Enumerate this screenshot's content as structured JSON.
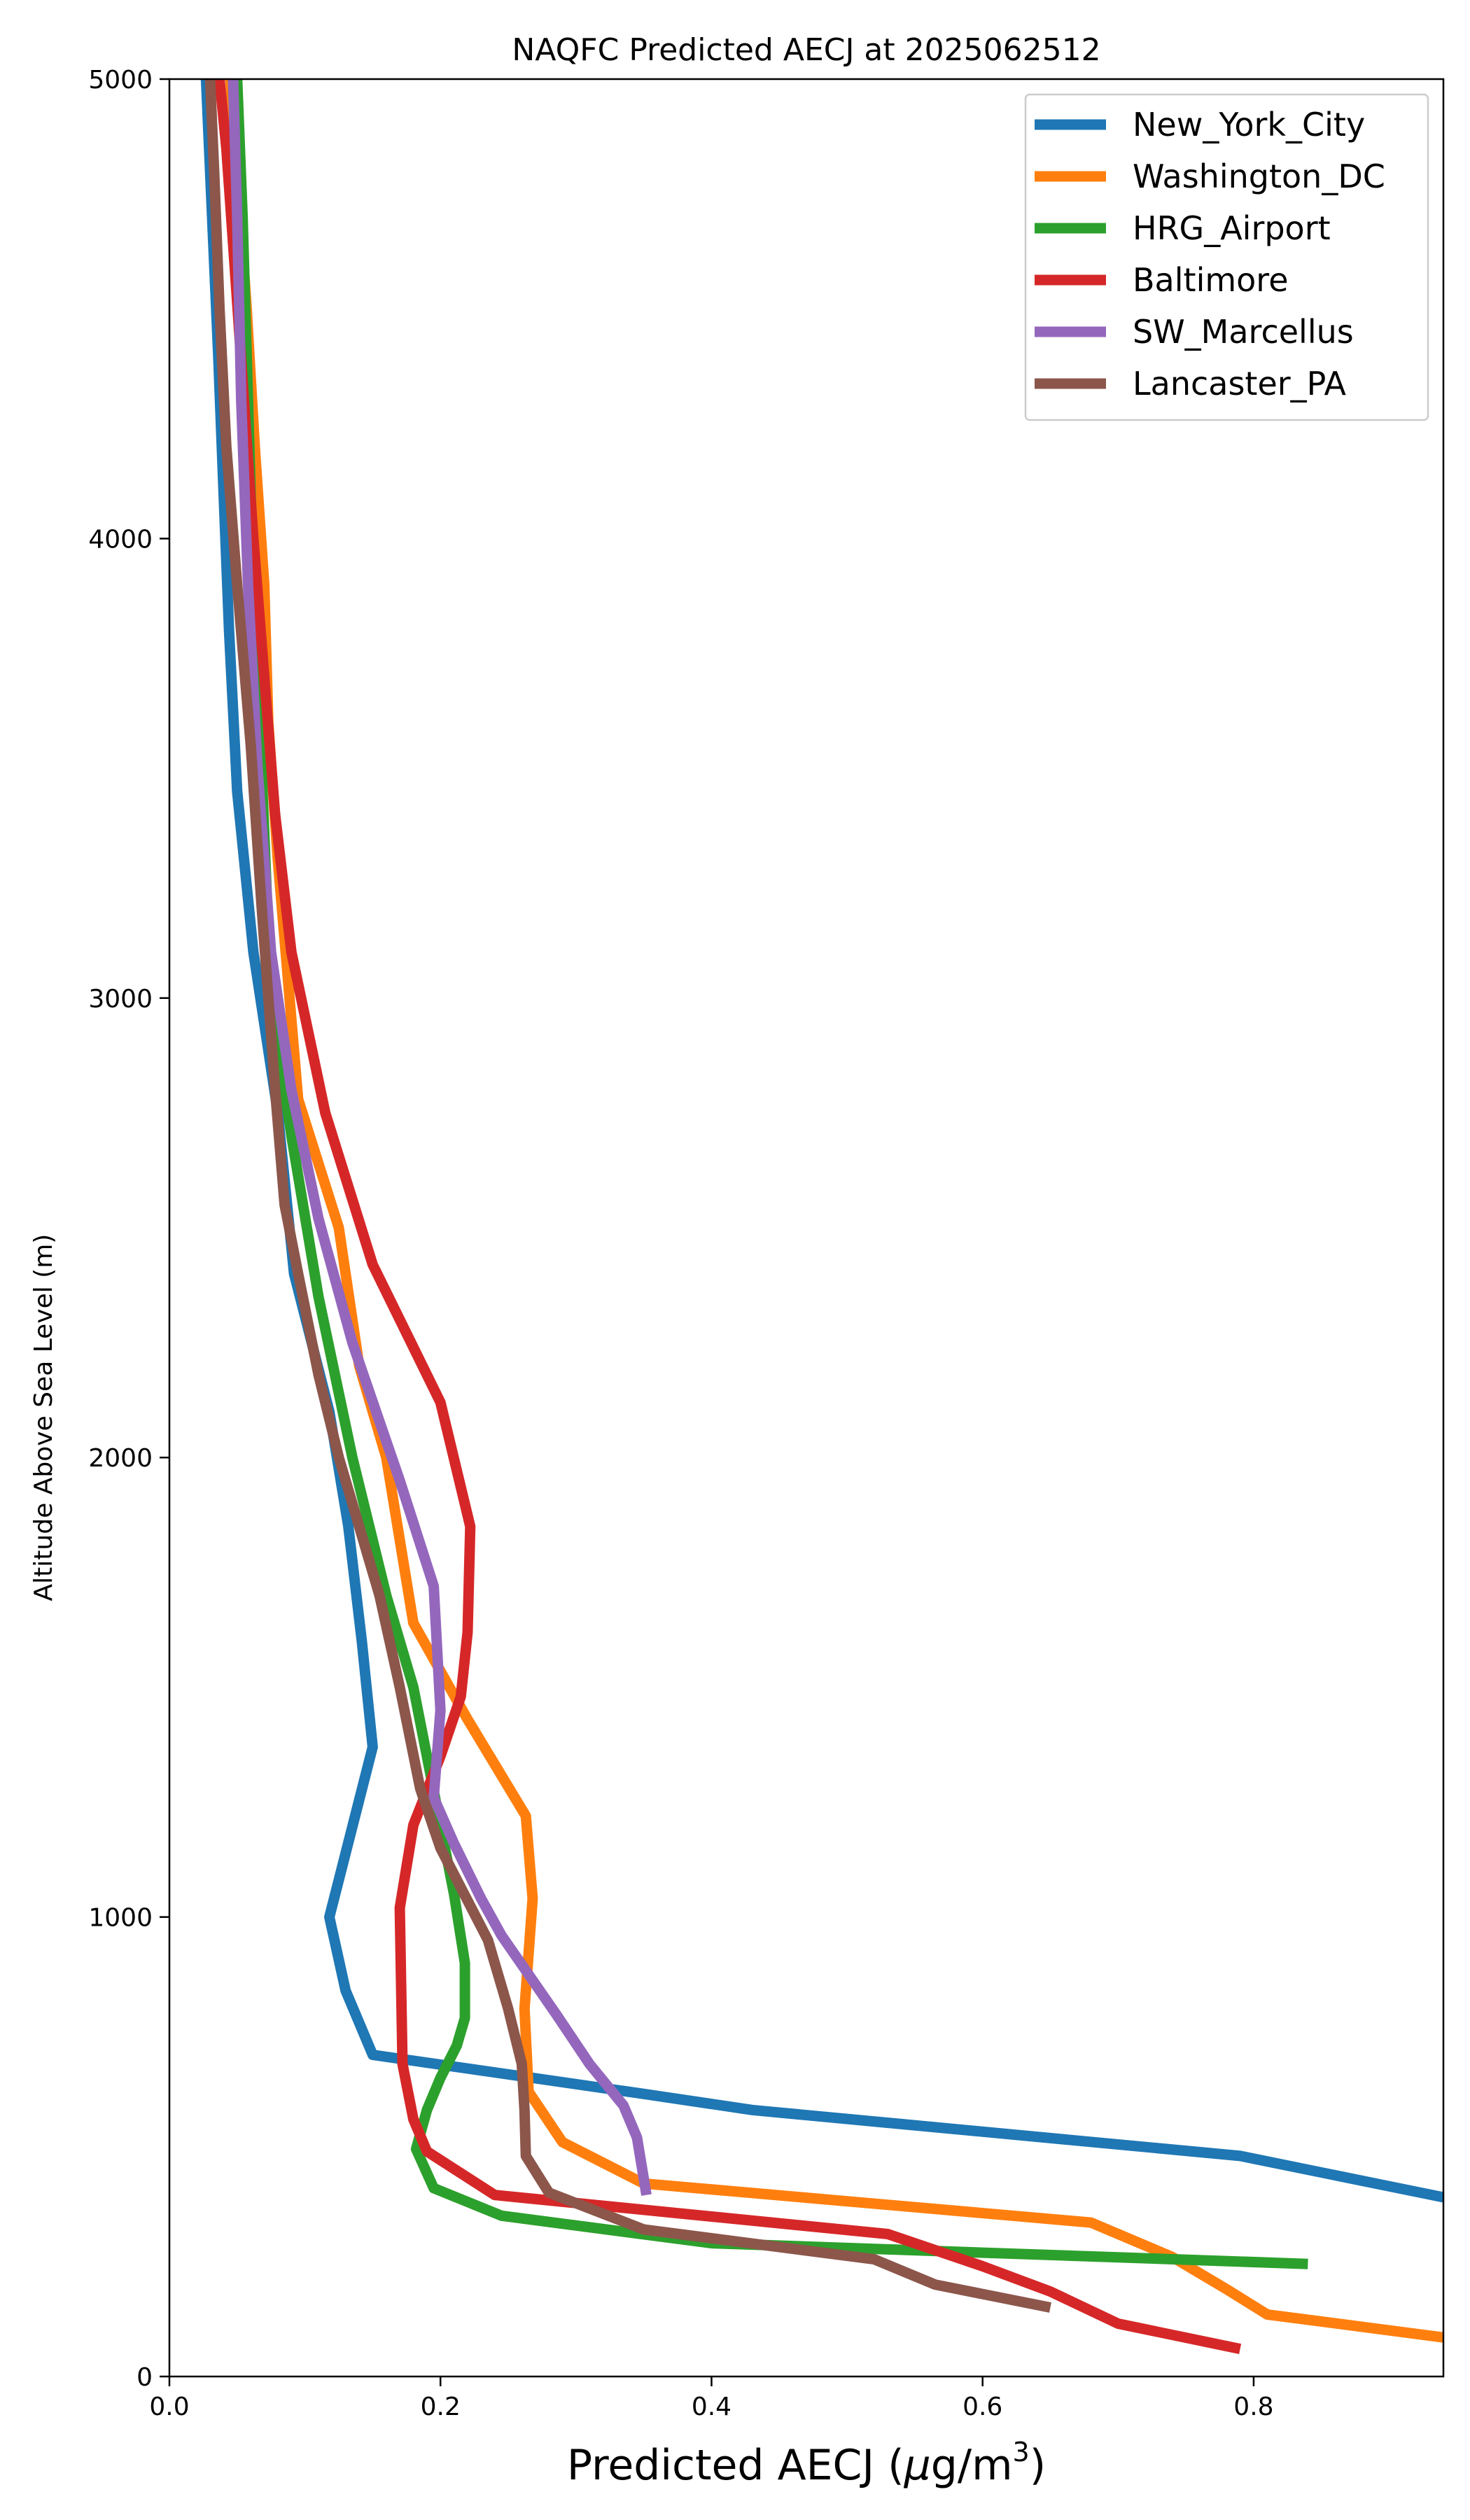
{
  "chart_data": {
    "type": "line",
    "title": "NAQFC Predicted AECJ at 2025062512",
    "xlabel": "Predicted AECJ (μg/m³)",
    "xlabel_parts": {
      "main": "Predicted AECJ (",
      "mu": "μ",
      "unit": "g/m",
      "sup": "3",
      "close": ")"
    },
    "ylabel": "Altitude Above Sea Level (m)",
    "xlim": [
      0,
      0.94
    ],
    "ylim": [
      0,
      5000
    ],
    "xticks": [
      0.0,
      0.2,
      0.4,
      0.6,
      0.8
    ],
    "xtick_labels": [
      "0.0",
      "0.2",
      "0.4",
      "0.6",
      "0.8"
    ],
    "yticks": [
      0,
      1000,
      2000,
      3000,
      4000,
      5000
    ],
    "ytick_labels": [
      "0",
      "1000",
      "2000",
      "3000",
      "4000",
      "5000"
    ],
    "grid": false,
    "legend_position": "top-right",
    "series": [
      {
        "name": "New_York_City",
        "color": "#1f77b4",
        "points": [
          [
            0.94,
            390
          ],
          [
            0.79,
            480
          ],
          [
            0.43,
            580
          ],
          [
            0.35,
            615
          ],
          [
            0.15,
            700
          ],
          [
            0.13,
            840
          ],
          [
            0.118,
            1000
          ],
          [
            0.15,
            1370
          ],
          [
            0.142,
            1600
          ],
          [
            0.132,
            1850
          ],
          [
            0.118,
            2100
          ],
          [
            0.092,
            2400
          ],
          [
            0.08,
            2750
          ],
          [
            0.062,
            3100
          ],
          [
            0.05,
            3450
          ],
          [
            0.044,
            3800
          ],
          [
            0.04,
            4100
          ],
          [
            0.036,
            4400
          ],
          [
            0.03,
            4800
          ],
          [
            0.027,
            5000
          ]
        ]
      },
      {
        "name": "Washington_DC",
        "color": "#ff7f0e",
        "points": [
          [
            0.94,
            85
          ],
          [
            0.81,
            135
          ],
          [
            0.78,
            190
          ],
          [
            0.74,
            260
          ],
          [
            0.68,
            335
          ],
          [
            0.35,
            420
          ],
          [
            0.29,
            510
          ],
          [
            0.265,
            620
          ],
          [
            0.262,
            800
          ],
          [
            0.268,
            1040
          ],
          [
            0.263,
            1220
          ],
          [
            0.22,
            1430
          ],
          [
            0.18,
            1640
          ],
          [
            0.16,
            2000
          ],
          [
            0.14,
            2200
          ],
          [
            0.125,
            2500
          ],
          [
            0.095,
            2780
          ],
          [
            0.08,
            3300
          ],
          [
            0.073,
            3600
          ],
          [
            0.07,
            3900
          ],
          [
            0.063,
            4200
          ],
          [
            0.057,
            4500
          ],
          [
            0.05,
            4800
          ],
          [
            0.045,
            5000
          ]
        ]
      },
      {
        "name": "HRG_Airport",
        "color": "#2ca02c",
        "points": [
          [
            0.84,
            245
          ],
          [
            0.4,
            290
          ],
          [
            0.245,
            350
          ],
          [
            0.195,
            410
          ],
          [
            0.182,
            495
          ],
          [
            0.19,
            580
          ],
          [
            0.2,
            650
          ],
          [
            0.212,
            720
          ],
          [
            0.218,
            780
          ],
          [
            0.218,
            900
          ],
          [
            0.21,
            1050
          ],
          [
            0.2,
            1200
          ],
          [
            0.18,
            1500
          ],
          [
            0.16,
            1700
          ],
          [
            0.135,
            2000
          ],
          [
            0.11,
            2350
          ],
          [
            0.09,
            2700
          ],
          [
            0.075,
            3000
          ],
          [
            0.068,
            3500
          ],
          [
            0.062,
            3900
          ],
          [
            0.058,
            4300
          ],
          [
            0.054,
            4700
          ],
          [
            0.05,
            5000
          ]
        ]
      },
      {
        "name": "Baltimore",
        "color": "#d62728",
        "points": [
          [
            0.79,
            60
          ],
          [
            0.7,
            115
          ],
          [
            0.65,
            185
          ],
          [
            0.6,
            240
          ],
          [
            0.53,
            310
          ],
          [
            0.24,
            395
          ],
          [
            0.19,
            490
          ],
          [
            0.18,
            560
          ],
          [
            0.172,
            680
          ],
          [
            0.17,
            1020
          ],
          [
            0.18,
            1200
          ],
          [
            0.2,
            1350
          ],
          [
            0.215,
            1480
          ],
          [
            0.22,
            1620
          ],
          [
            0.222,
            1850
          ],
          [
            0.2,
            2120
          ],
          [
            0.15,
            2420
          ],
          [
            0.115,
            2750
          ],
          [
            0.09,
            3100
          ],
          [
            0.078,
            3400
          ],
          [
            0.07,
            3700
          ],
          [
            0.062,
            4000
          ],
          [
            0.055,
            4300
          ],
          [
            0.048,
            4600
          ],
          [
            0.042,
            4850
          ],
          [
            0.037,
            5000
          ]
        ]
      },
      {
        "name": "SW_Marcellus",
        "color": "#9467bd",
        "points": [
          [
            0.352,
            395
          ],
          [
            0.345,
            520
          ],
          [
            0.335,
            590
          ],
          [
            0.31,
            680
          ],
          [
            0.285,
            790
          ],
          [
            0.245,
            960
          ],
          [
            0.23,
            1040
          ],
          [
            0.21,
            1160
          ],
          [
            0.195,
            1260
          ],
          [
            0.2,
            1450
          ],
          [
            0.195,
            1720
          ],
          [
            0.17,
            1950
          ],
          [
            0.135,
            2250
          ],
          [
            0.11,
            2520
          ],
          [
            0.09,
            2800
          ],
          [
            0.075,
            3100
          ],
          [
            0.065,
            3500
          ],
          [
            0.058,
            3900
          ],
          [
            0.053,
            4300
          ],
          [
            0.05,
            4700
          ],
          [
            0.047,
            5000
          ]
        ]
      },
      {
        "name": "Lancaster_PA",
        "color": "#8c564b",
        "points": [
          [
            0.65,
            150
          ],
          [
            0.565,
            200
          ],
          [
            0.52,
            255
          ],
          [
            0.35,
            320
          ],
          [
            0.28,
            400
          ],
          [
            0.263,
            480
          ],
          [
            0.262,
            580
          ],
          [
            0.26,
            680
          ],
          [
            0.25,
            800
          ],
          [
            0.235,
            950
          ],
          [
            0.2,
            1150
          ],
          [
            0.185,
            1280
          ],
          [
            0.17,
            1500
          ],
          [
            0.155,
            1700
          ],
          [
            0.14,
            1850
          ],
          [
            0.125,
            2000
          ],
          [
            0.11,
            2180
          ],
          [
            0.095,
            2400
          ],
          [
            0.085,
            2550
          ],
          [
            0.078,
            2800
          ],
          [
            0.068,
            3200
          ],
          [
            0.06,
            3550
          ],
          [
            0.05,
            3900
          ],
          [
            0.042,
            4200
          ],
          [
            0.037,
            4500
          ],
          [
            0.033,
            4800
          ],
          [
            0.03,
            5000
          ]
        ]
      }
    ]
  }
}
